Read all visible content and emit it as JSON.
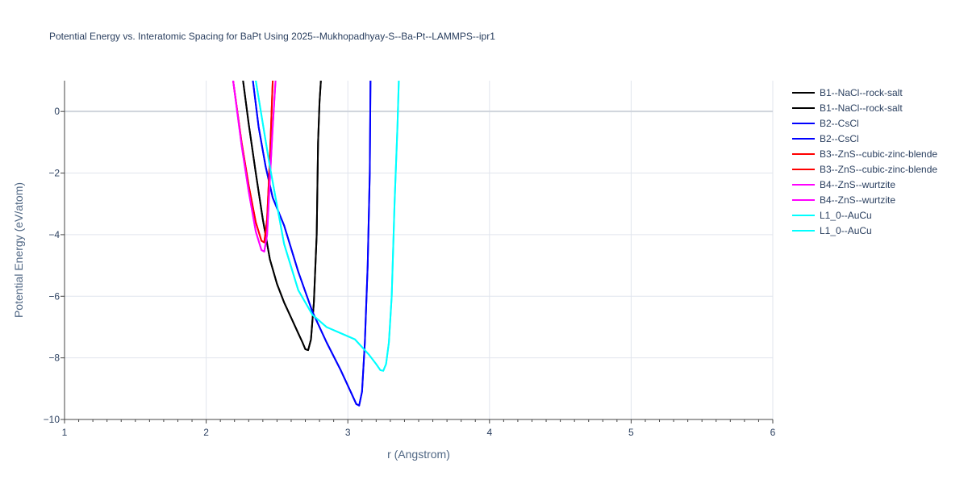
{
  "chart_data": {
    "type": "line",
    "title": "Potential Energy vs. Interatomic Spacing for BaPt Using 2025--Mukhopadhyay-S--Ba-Pt--LAMMPS--ipr1",
    "xlabel": "r (Angstrom)",
    "ylabel": "Potential Energy (eV/atom)",
    "xlim": [
      1,
      6
    ],
    "ylim": [
      -10,
      1
    ],
    "xticks": [
      1,
      2,
      3,
      4,
      5,
      6
    ],
    "yticks": [
      -10,
      -8,
      -6,
      -4,
      -2,
      0
    ],
    "xtick_labels": [
      "1",
      "2",
      "3",
      "4",
      "5",
      "6"
    ],
    "ytick_labels": [
      "−10",
      "−8",
      "−6",
      "−4",
      "−2",
      "0"
    ],
    "grid": true,
    "legend_position": "right",
    "series": [
      {
        "name": "B1--NaCl--rock-salt",
        "color": "#000000",
        "x": [
          2.26,
          2.3,
          2.35,
          2.4,
          2.45,
          2.5,
          2.55,
          2.6,
          2.65,
          2.68,
          2.7,
          2.72,
          2.74,
          2.76,
          2.78,
          2.79,
          2.8,
          2.81
        ],
        "y": [
          1.0,
          -0.4,
          -2.0,
          -3.5,
          -4.8,
          -5.6,
          -6.2,
          -6.7,
          -7.2,
          -7.5,
          -7.72,
          -7.75,
          -7.4,
          -6.2,
          -4.0,
          -1.0,
          0.3,
          1.0
        ]
      },
      {
        "name": "B1--NaCl--rock-salt",
        "color": "#000000",
        "x": [
          2.26,
          2.3,
          2.35,
          2.4,
          2.45,
          2.5,
          2.55,
          2.6,
          2.65,
          2.68,
          2.7,
          2.72,
          2.74,
          2.76,
          2.78,
          2.79,
          2.8,
          2.81
        ],
        "y": [
          1.0,
          -0.4,
          -2.0,
          -3.5,
          -4.8,
          -5.6,
          -6.2,
          -6.7,
          -7.2,
          -7.5,
          -7.72,
          -7.75,
          -7.4,
          -6.2,
          -4.0,
          -1.0,
          0.3,
          1.0
        ]
      },
      {
        "name": "B2--CsCl",
        "color": "#0000ff",
        "x": [
          2.33,
          2.37,
          2.42,
          2.47,
          2.55,
          2.65,
          2.75,
          2.85,
          2.95,
          3.02,
          3.06,
          3.08,
          3.1,
          3.12,
          3.14,
          3.155,
          3.16
        ],
        "y": [
          1.0,
          -0.5,
          -1.8,
          -2.8,
          -3.7,
          -5.2,
          -6.5,
          -7.5,
          -8.4,
          -9.1,
          -9.5,
          -9.55,
          -9.1,
          -7.5,
          -5.0,
          -2.0,
          1.0
        ]
      },
      {
        "name": "B2--CsCl",
        "color": "#0000ff",
        "x": [
          2.33,
          2.37,
          2.42,
          2.47,
          2.55,
          2.65,
          2.75,
          2.85,
          2.95,
          3.02,
          3.06,
          3.08,
          3.1,
          3.12,
          3.14,
          3.155,
          3.16
        ],
        "y": [
          1.0,
          -0.5,
          -1.8,
          -2.8,
          -3.7,
          -5.2,
          -6.5,
          -7.5,
          -8.4,
          -9.1,
          -9.5,
          -9.55,
          -9.1,
          -7.5,
          -5.0,
          -2.0,
          1.0
        ]
      },
      {
        "name": "B3--ZnS--cubic-zinc-blende",
        "color": "#ff0000",
        "x": [
          2.19,
          2.25,
          2.3,
          2.35,
          2.39,
          2.41,
          2.43,
          2.45,
          2.47
        ],
        "y": [
          1.0,
          -1.0,
          -2.4,
          -3.6,
          -4.2,
          -4.25,
          -3.5,
          -1.5,
          1.0
        ]
      },
      {
        "name": "B3--ZnS--cubic-zinc-blende",
        "color": "#ff0000",
        "x": [
          2.19,
          2.25,
          2.3,
          2.35,
          2.39,
          2.41,
          2.43,
          2.45,
          2.47
        ],
        "y": [
          1.0,
          -1.0,
          -2.4,
          -3.6,
          -4.2,
          -4.25,
          -3.5,
          -1.5,
          1.0
        ]
      },
      {
        "name": "B4--ZnS--wurtzite",
        "color": "#ff00ff",
        "x": [
          2.19,
          2.25,
          2.3,
          2.35,
          2.39,
          2.41,
          2.43,
          2.45,
          2.47,
          2.49
        ],
        "y": [
          1.0,
          -1.1,
          -2.6,
          -3.9,
          -4.5,
          -4.55,
          -4.0,
          -2.2,
          -0.5,
          1.0
        ]
      },
      {
        "name": "B4--ZnS--wurtzite",
        "color": "#ff00ff",
        "x": [
          2.19,
          2.25,
          2.3,
          2.35,
          2.39,
          2.41,
          2.43,
          2.45,
          2.47,
          2.49
        ],
        "y": [
          1.0,
          -1.1,
          -2.6,
          -3.9,
          -4.5,
          -4.55,
          -4.0,
          -2.2,
          -0.5,
          1.0
        ]
      },
      {
        "name": "L1_0--AuCu",
        "color": "#00ffff",
        "x": [
          2.35,
          2.45,
          2.55,
          2.65,
          2.75,
          2.85,
          2.95,
          3.05,
          3.15,
          3.2,
          3.23,
          3.25,
          3.27,
          3.29,
          3.31,
          3.33,
          3.35,
          3.36
        ],
        "y": [
          1.0,
          -1.8,
          -4.3,
          -5.8,
          -6.6,
          -7.0,
          -7.2,
          -7.4,
          -7.9,
          -8.2,
          -8.4,
          -8.42,
          -8.2,
          -7.5,
          -6.0,
          -3.0,
          -0.5,
          1.0
        ]
      },
      {
        "name": "L1_0--AuCu",
        "color": "#00ffff",
        "x": [
          2.35,
          2.45,
          2.55,
          2.65,
          2.75,
          2.85,
          2.95,
          3.05,
          3.15,
          3.2,
          3.23,
          3.25,
          3.27,
          3.29,
          3.31,
          3.33,
          3.35,
          3.36
        ],
        "y": [
          1.0,
          -1.8,
          -4.3,
          -5.8,
          -6.6,
          -7.0,
          -7.2,
          -7.4,
          -7.9,
          -8.2,
          -8.4,
          -8.42,
          -8.2,
          -7.5,
          -6.0,
          -3.0,
          -0.5,
          1.0
        ]
      }
    ]
  }
}
